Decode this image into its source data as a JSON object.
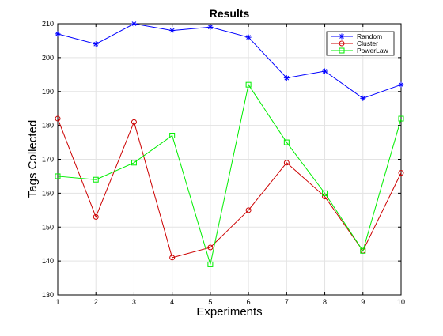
{
  "chart_data": {
    "type": "line",
    "title": "Results",
    "xlabel": "Experiments",
    "ylabel": "Tags Collected",
    "x": [
      1,
      2,
      3,
      4,
      5,
      6,
      7,
      8,
      9,
      10
    ],
    "xlim": [
      1,
      10
    ],
    "ylim": [
      130,
      210
    ],
    "yticks": [
      130,
      140,
      150,
      160,
      170,
      180,
      190,
      200,
      210
    ],
    "grid": true,
    "legend_position": "top-right",
    "series": [
      {
        "name": "Random",
        "color": "#0000ff",
        "marker": "star",
        "values": [
          207,
          204,
          210,
          208,
          209,
          206,
          194,
          196,
          188,
          192
        ]
      },
      {
        "name": "Cluster",
        "color": "#cc0000",
        "marker": "circle",
        "values": [
          182,
          153,
          181,
          141,
          144,
          155,
          169,
          159,
          143,
          166
        ]
      },
      {
        "name": "PowerLaw",
        "color": "#00ee00",
        "marker": "square",
        "values": [
          165,
          164,
          169,
          177,
          139,
          192,
          175,
          160,
          143,
          182
        ]
      }
    ]
  }
}
